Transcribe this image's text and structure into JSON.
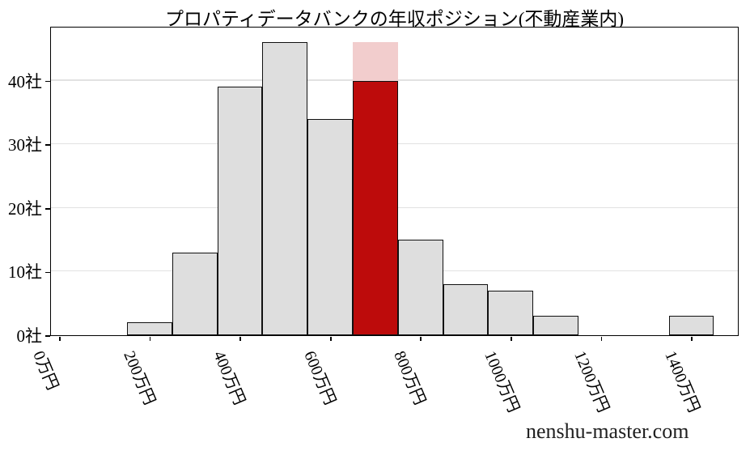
{
  "chart_data": {
    "type": "bar",
    "subtype": "histogram",
    "title": "プロパティデータバンクの年収ポジション(不動産業内)",
    "watermark": "nenshu-master.com",
    "xlabel": "",
    "ylabel": "",
    "x_unit": "万円",
    "y_unit": "社",
    "bin_width": 100,
    "categories": [
      200,
      300,
      400,
      500,
      600,
      700,
      800,
      900,
      1000,
      1100,
      1200,
      1300,
      1400
    ],
    "values": [
      2,
      13,
      39,
      46,
      34,
      40,
      15,
      8,
      7,
      3,
      0,
      0,
      3
    ],
    "highlight": {
      "category": 700,
      "value": 40,
      "overlay_top": 46
    },
    "x_tick_values": [
      0,
      200,
      400,
      600,
      800,
      1000,
      1200,
      1400
    ],
    "x_tick_labels": [
      "0万円",
      "200万円",
      "400万円",
      "600万円",
      "800万円",
      "1000万円",
      "1200万円",
      "1400万円"
    ],
    "y_tick_values": [
      0,
      10,
      20,
      30,
      40
    ],
    "y_tick_labels": [
      "0社",
      "10社",
      "20社",
      "30社",
      "40社"
    ],
    "y_gridline_values": [
      10,
      20,
      30,
      40
    ],
    "ylim": [
      0,
      48.3
    ],
    "grid": "horizontal-y",
    "legend": "none",
    "colors": {
      "background": "#ffffff",
      "bar_fill": "#dedede",
      "bar_edge": "#111111",
      "highlight_fill": "#bd0b0b",
      "highlight_overlay": "#f2cdcd",
      "gridline": "#e2e2e2",
      "axis": "#000000",
      "text": "#000000",
      "watermark": "#1f1f1f"
    }
  }
}
